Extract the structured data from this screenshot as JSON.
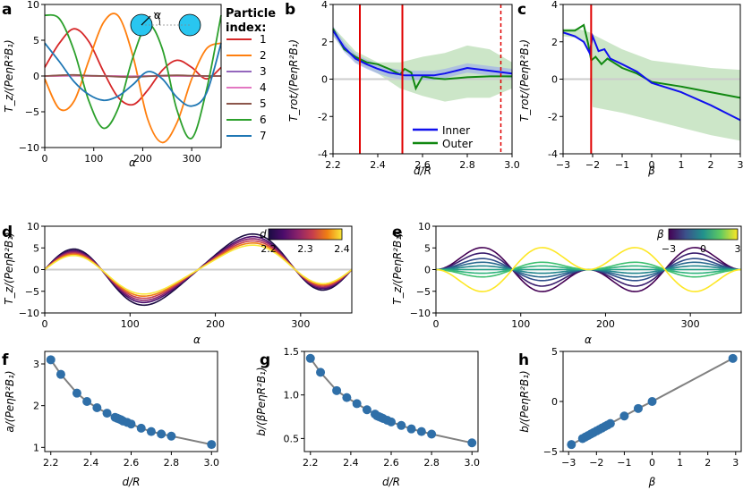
{
  "colors": {
    "p1": "#d62728",
    "p2": "#ff7f0e",
    "p3": "#9467bd",
    "p4": "#e377c2",
    "p5": "#8c564b",
    "p6": "#2ca02c",
    "p7": "#1f77b4",
    "inner": "#1010ee",
    "outer": "#118811",
    "band": "#b6dcb0",
    "red": "#e00000",
    "zero": "#cccccc",
    "grey_line": "#808080",
    "dots": "#2f6fa8"
  },
  "panel_labels": [
    "a",
    "b",
    "c",
    "d",
    "e",
    "f",
    "g",
    "h"
  ],
  "legend_a": {
    "title_line1": "Particle",
    "title_line2": "index:",
    "entries": [
      "1",
      "2",
      "3",
      "4",
      "5",
      "6",
      "7"
    ]
  },
  "inset_a": {
    "angle_symbol": "α"
  },
  "legend_b": {
    "inner": "Inner",
    "outer": "Outer"
  },
  "colorbar_d": {
    "symbol": "d",
    "ticks": [
      "2.2",
      "2.3",
      "2.4"
    ]
  },
  "colorbar_e": {
    "symbol": "β",
    "ticks": [
      "−3",
      "0",
      "3"
    ]
  },
  "axis_labels": {
    "alpha": "α",
    "d_over_R": "d/R",
    "beta": "β",
    "Tz": "T_z/(PeηR²B₁)",
    "Trot": "T_rot/(PeηR²B₁)",
    "a_ylabel": "a/(PeηR²B₁)",
    "bbeta_ylabel": "b/(βPeηR²B₁)",
    "b_ylabel": "b/(PeηR²B₁)"
  },
  "chart_data": [
    {
      "panel": "a",
      "type": "line",
      "xlabel": "α",
      "ylabel": "T_z/(PeηR²B₁)",
      "xlim": [
        0,
        360
      ],
      "ylim": [
        -10,
        10
      ],
      "xticks": [
        0,
        100,
        200,
        300
      ],
      "yticks": [
        -10,
        -5,
        0,
        5,
        10
      ],
      "x": [
        0,
        30,
        60,
        90,
        120,
        150,
        180,
        210,
        240,
        270,
        300,
        330,
        360
      ],
      "series": [
        {
          "name": "1",
          "values": [
            1.2,
            4.6,
            6.6,
            4.8,
            0.6,
            -3.0,
            -4.0,
            -2.0,
            0.8,
            2.2,
            1.2,
            -0.4,
            1.2
          ]
        },
        {
          "name": "2",
          "values": [
            -0.4,
            -4.6,
            -3.5,
            2.2,
            7.5,
            8.4,
            2.8,
            -6.0,
            -9.3,
            -6.5,
            -0.4,
            3.8,
            4.6
          ]
        },
        {
          "name": "3",
          "values": [
            0.0,
            0.05,
            0.1,
            0.05,
            0.0,
            -0.05,
            -0.05,
            0.0,
            0.05,
            0.05,
            0.0,
            0.0,
            0.0
          ]
        },
        {
          "name": "4",
          "values": [
            0.0,
            0.0,
            0.05,
            0.0,
            0.0,
            0.0,
            -0.05,
            0.0,
            0.0,
            0.0,
            0.0,
            0.0,
            0.0
          ]
        },
        {
          "name": "5",
          "values": [
            0.0,
            0.1,
            0.15,
            0.05,
            0.0,
            -0.1,
            -0.15,
            -0.05,
            0.05,
            0.1,
            0.05,
            0.0,
            0.0
          ]
        },
        {
          "name": "6",
          "values": [
            8.5,
            8.0,
            3.5,
            -3.5,
            -7.3,
            -4.5,
            2.6,
            7.2,
            3.8,
            -4.8,
            -8.7,
            -2.0,
            8.5
          ]
        },
        {
          "name": "7",
          "values": [
            4.6,
            2.0,
            -0.8,
            -2.6,
            -3.4,
            -2.8,
            -1.2,
            0.6,
            -0.4,
            -3.0,
            -4.2,
            -2.4,
            4.6
          ]
        }
      ]
    },
    {
      "panel": "b",
      "type": "line",
      "xlabel": "d/R",
      "ylabel": "T_rot/(PeηR²B₁)",
      "xlim": [
        2.2,
        3.0
      ],
      "ylim": [
        -4,
        4
      ],
      "xticks": [
        2.2,
        2.4,
        2.6,
        2.8,
        3.0
      ],
      "yticks": [
        -4,
        -2,
        0,
        2,
        4
      ],
      "vlines_solid": [
        2.32,
        2.51
      ],
      "vlines_dashed": [
        2.95
      ],
      "series": [
        {
          "name": "Inner",
          "x": [
            2.2,
            2.25,
            2.3,
            2.35,
            2.4,
            2.45,
            2.5,
            2.52,
            2.55,
            2.6,
            2.65,
            2.7,
            2.75,
            2.8,
            2.9,
            3.0
          ],
          "values": [
            2.6,
            1.7,
            1.1,
            0.8,
            0.55,
            0.35,
            0.25,
            0.2,
            0.2,
            0.2,
            0.2,
            0.3,
            0.45,
            0.6,
            0.45,
            0.3
          ]
        },
        {
          "name": "Outer",
          "x": [
            2.2,
            2.25,
            2.3,
            2.35,
            2.4,
            2.45,
            2.5,
            2.52,
            2.55,
            2.57,
            2.6,
            2.65,
            2.7,
            2.8,
            2.9,
            3.0
          ],
          "values": [
            2.7,
            1.6,
            1.2,
            0.9,
            0.8,
            0.55,
            0.25,
            0.55,
            0.35,
            -0.5,
            0.15,
            0.05,
            0.0,
            0.1,
            0.15,
            0.15
          ]
        },
        {
          "name": "band",
          "x": [
            2.2,
            2.3,
            2.4,
            2.5,
            2.6,
            2.7,
            2.8,
            2.9,
            3.0
          ],
          "upper": [
            2.8,
            1.5,
            0.9,
            0.9,
            1.2,
            1.4,
            1.8,
            1.6,
            0.9
          ],
          "lower": [
            2.3,
            0.9,
            0.3,
            -0.5,
            -0.9,
            -1.2,
            -1.0,
            -1.0,
            -0.5
          ]
        }
      ]
    },
    {
      "panel": "c",
      "type": "line",
      "xlabel": "β",
      "ylabel": "T_rot/(PeηR²B₁)",
      "xlim": [
        -3,
        3
      ],
      "ylim": [
        -4,
        4
      ],
      "xticks": [
        -3,
        -2,
        -1,
        0,
        1,
        2,
        3
      ],
      "yticks": [
        -4,
        -2,
        0,
        2,
        4
      ],
      "vlines_solid": [
        -2.05
      ],
      "series": [
        {
          "name": "Inner",
          "x": [
            -3.0,
            -2.6,
            -2.3,
            -2.1,
            -2.0,
            -1.8,
            -1.6,
            -1.4,
            -1.0,
            -0.5,
            0.0,
            1.0,
            2.0,
            3.0
          ],
          "values": [
            2.5,
            2.3,
            2.0,
            1.4,
            2.3,
            1.5,
            1.6,
            1.1,
            0.8,
            0.4,
            -0.2,
            -0.7,
            -1.4,
            -2.2
          ]
        },
        {
          "name": "Outer",
          "x": [
            -3.0,
            -2.6,
            -2.3,
            -2.15,
            -2.05,
            -1.9,
            -1.7,
            -1.5,
            -1.0,
            -0.5,
            0.0,
            1.0,
            2.0,
            3.0
          ],
          "values": [
            2.6,
            2.6,
            2.9,
            1.9,
            1.0,
            1.2,
            0.8,
            1.1,
            0.6,
            0.3,
            -0.15,
            -0.4,
            -0.7,
            -1.0
          ]
        },
        {
          "name": "band",
          "x": [
            -3.0,
            -2.5,
            -2.1,
            -2.0,
            -1.0,
            0.0,
            1.0,
            2.0,
            3.0
          ],
          "upper": [
            2.7,
            2.7,
            2.5,
            2.4,
            1.6,
            1.0,
            0.8,
            0.6,
            0.5
          ],
          "lower": [
            2.3,
            2.2,
            1.6,
            -1.5,
            -1.8,
            -2.2,
            -2.6,
            -3.0,
            -3.3
          ]
        }
      ]
    },
    {
      "panel": "d",
      "type": "line",
      "xlabel": "α",
      "ylabel": "T_z/(PeηR²B₁)",
      "xlim": [
        0,
        360
      ],
      "ylim": [
        -10,
        10
      ],
      "xticks": [
        0,
        100,
        200,
        300
      ],
      "yticks": [
        -10,
        -5,
        0,
        5,
        10
      ],
      "model": "T = a·sin(2α)·sin(α) style curve; amplitude a varies with d",
      "d_values": [
        2.2,
        2.24,
        2.28,
        2.32,
        2.36,
        2.4
      ],
      "peak_values": [
        6.7,
        6.2,
        5.8,
        5.4,
        5.0,
        4.6
      ]
    },
    {
      "panel": "e",
      "type": "line",
      "xlabel": "α",
      "ylabel": "T_z/(PeηR²B₁)",
      "xlim": [
        0,
        360
      ],
      "ylim": [
        -10,
        10
      ],
      "xticks": [
        0,
        100,
        200,
        300
      ],
      "yticks": [
        -10,
        -5,
        0,
        5,
        10
      ],
      "beta_values": [
        -3,
        -2.25,
        -1.5,
        -1,
        -0.5,
        0,
        0.5,
        1,
        3
      ],
      "a": 3.3,
      "b_per_beta": 1.5
    },
    {
      "panel": "f",
      "type": "scatter",
      "xlabel": "d/R",
      "ylabel": "a/(PeηR²B₁)",
      "xlim": [
        2.17,
        3.03
      ],
      "ylim": [
        0.9,
        3.3
      ],
      "xticks": [
        2.2,
        2.4,
        2.6,
        2.8,
        3.0
      ],
      "yticks": [
        1,
        2,
        3
      ],
      "x": [
        2.2,
        2.25,
        2.33,
        2.38,
        2.43,
        2.48,
        2.52,
        2.53,
        2.54,
        2.55,
        2.56,
        2.58,
        2.6,
        2.65,
        2.7,
        2.75,
        2.8,
        3.0
      ],
      "values": [
        3.1,
        2.75,
        2.3,
        2.1,
        1.95,
        1.82,
        1.72,
        1.7,
        1.68,
        1.66,
        1.63,
        1.6,
        1.56,
        1.46,
        1.38,
        1.32,
        1.27,
        1.07
      ]
    },
    {
      "panel": "g",
      "type": "scatter",
      "xlabel": "d/R",
      "ylabel": "b/(βPeηR²B₁)",
      "xlim": [
        2.17,
        3.03
      ],
      "ylim": [
        0.35,
        1.5
      ],
      "xticks": [
        2.2,
        2.4,
        2.6,
        2.8,
        3.0
      ],
      "yticks": [
        0.5,
        1.0,
        1.5
      ],
      "x": [
        2.2,
        2.25,
        2.33,
        2.38,
        2.43,
        2.48,
        2.52,
        2.53,
        2.54,
        2.55,
        2.56,
        2.58,
        2.6,
        2.65,
        2.7,
        2.75,
        2.8,
        3.0
      ],
      "values": [
        1.42,
        1.26,
        1.05,
        0.97,
        0.9,
        0.83,
        0.78,
        0.76,
        0.75,
        0.74,
        0.73,
        0.71,
        0.69,
        0.65,
        0.61,
        0.58,
        0.55,
        0.45
      ]
    },
    {
      "panel": "h",
      "type": "scatter",
      "xlabel": "β",
      "ylabel": "b/(PeηR²B₁)",
      "xlim": [
        -3.2,
        3.2
      ],
      "ylim": [
        -5,
        5
      ],
      "xticks": [
        -3,
        -2,
        -1,
        0,
        1,
        2,
        3
      ],
      "yticks": [
        -5,
        0,
        5
      ],
      "x": [
        -2.9,
        -2.5,
        -2.4,
        -2.3,
        -2.2,
        -2.1,
        -2.0,
        -1.9,
        -1.8,
        -1.7,
        -1.6,
        -1.5,
        -1.0,
        -0.5,
        0.0,
        2.9
      ],
      "values": [
        -4.3,
        -3.7,
        -3.55,
        -3.4,
        -3.25,
        -3.1,
        -2.95,
        -2.8,
        -2.65,
        -2.5,
        -2.35,
        -2.2,
        -1.45,
        -0.7,
        0.0,
        4.3
      ]
    }
  ]
}
